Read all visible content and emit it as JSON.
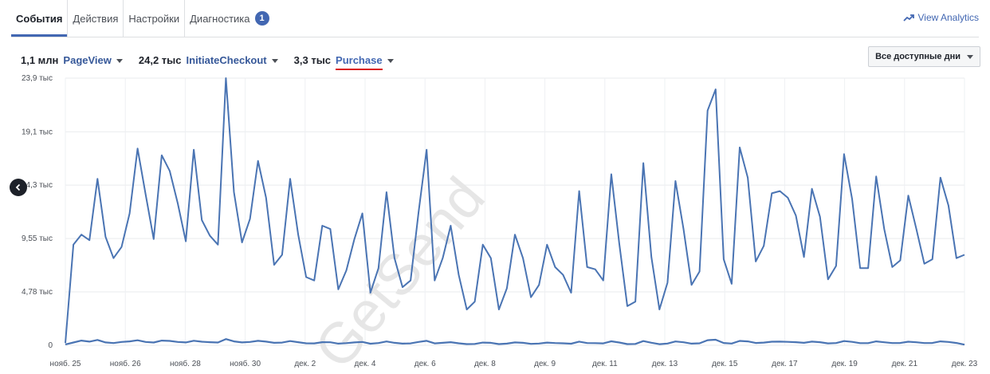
{
  "tabs": [
    {
      "label": "События"
    },
    {
      "label": "Действия"
    },
    {
      "label": "Настройки"
    },
    {
      "label": "Диагностика",
      "badge": "1"
    }
  ],
  "view_analytics": {
    "label": "View Analytics",
    "icon": "trend-up-icon"
  },
  "metrics": [
    {
      "value": "1,1 млн",
      "name": "PageView"
    },
    {
      "value": "24,2 тыс",
      "name": "InitiateCheckout"
    },
    {
      "value": "3,3 тыс",
      "name": "Purchase"
    }
  ],
  "range_select": {
    "label": "Все доступные дни"
  },
  "watermark": "GetSend",
  "colors": {
    "accent": "#4267b2",
    "line": "#4a74b3",
    "underline": "#d91c1c"
  },
  "chart_data": {
    "type": "line",
    "ylim": [
      0,
      23900
    ],
    "yticks": [
      {
        "value": 0,
        "label": "0"
      },
      {
        "value": 4780,
        "label": "4,78 тыс"
      },
      {
        "value": 9550,
        "label": "9,55 тыс"
      },
      {
        "value": 14330,
        "label": "14,3 тыс"
      },
      {
        "value": 19100,
        "label": "19,1 тыс"
      },
      {
        "value": 23900,
        "label": "23,9 тыс"
      }
    ],
    "xticks": [
      {
        "day": 0,
        "label": "нояб. 25"
      },
      {
        "day": 1,
        "label": "нояб. 26"
      },
      {
        "day": 2,
        "label": "нояб. 28"
      },
      {
        "day": 3,
        "label": "нояб. 30"
      },
      {
        "day": 4,
        "label": "дек. 2"
      },
      {
        "day": 5,
        "label": "дек. 4"
      },
      {
        "day": 6,
        "label": "дек. 6"
      },
      {
        "day": 7,
        "label": "дек. 8"
      },
      {
        "day": 8,
        "label": "дек. 9"
      },
      {
        "day": 9,
        "label": "дек. 11"
      },
      {
        "day": 10,
        "label": "дек. 13"
      },
      {
        "day": 11,
        "label": "дек. 15"
      },
      {
        "day": 12,
        "label": "дек. 17"
      },
      {
        "day": 13,
        "label": "дек. 19"
      },
      {
        "day": 14,
        "label": "дек. 21"
      },
      {
        "day": 15,
        "label": "дек. 23"
      }
    ],
    "series": [
      {
        "values": [
          200,
          9000,
          9900,
          9400,
          14900,
          9700,
          7800,
          8800,
          11800,
          17600,
          13500,
          9500,
          17000,
          15600,
          12700,
          9300,
          17500,
          11200,
          9800,
          9000,
          23900,
          13700,
          9200,
          11300,
          16500,
          13200,
          7200,
          8100,
          14900,
          9900,
          6100,
          5800,
          10700,
          10400,
          5000,
          6700,
          9500,
          11800,
          4700,
          6900,
          13700,
          7800,
          5200,
          5800,
          11900,
          17500,
          5800,
          7800,
          10700,
          6300,
          3200,
          3900,
          9000,
          7800,
          3200,
          5100,
          9900,
          7800,
          4300,
          5400,
          9000,
          7000,
          6300,
          4700,
          13800,
          7000,
          6800,
          5800,
          15300,
          9100,
          3500,
          3900,
          16300,
          7900,
          3200,
          5600,
          14700,
          10400,
          5400,
          6600,
          21000,
          22900,
          7700,
          5500,
          17700,
          15000,
          7500,
          8900,
          13600,
          13800,
          13200,
          11600,
          7900,
          14000,
          11500,
          5900,
          7100,
          17100,
          13100,
          6900,
          6900,
          15100,
          10400,
          7000,
          7600,
          13400,
          10400,
          7300,
          7700,
          15000,
          12500,
          7800,
          8100
        ]
      },
      {
        "values": [
          80,
          250,
          420,
          330,
          480,
          260,
          200,
          300,
          350,
          450,
          300,
          250,
          420,
          390,
          300,
          260,
          410,
          320,
          280,
          250,
          560,
          350,
          260,
          300,
          400,
          330,
          220,
          240,
          380,
          280,
          180,
          170,
          280,
          270,
          150,
          190,
          260,
          300,
          140,
          200,
          340,
          220,
          150,
          170,
          300,
          400,
          170,
          220,
          280,
          180,
          110,
          120,
          240,
          220,
          110,
          150,
          260,
          220,
          130,
          160,
          240,
          200,
          180,
          140,
          330,
          200,
          190,
          170,
          360,
          250,
          110,
          120,
          380,
          230,
          100,
          160,
          340,
          270,
          150,
          180,
          460,
          500,
          210,
          160,
          390,
          350,
          210,
          240,
          320,
          330,
          310,
          280,
          220,
          330,
          280,
          170,
          200,
          380,
          310,
          190,
          190,
          350,
          270,
          200,
          210,
          320,
          270,
          200,
          210,
          350,
          300,
          210,
          60
        ]
      }
    ]
  }
}
